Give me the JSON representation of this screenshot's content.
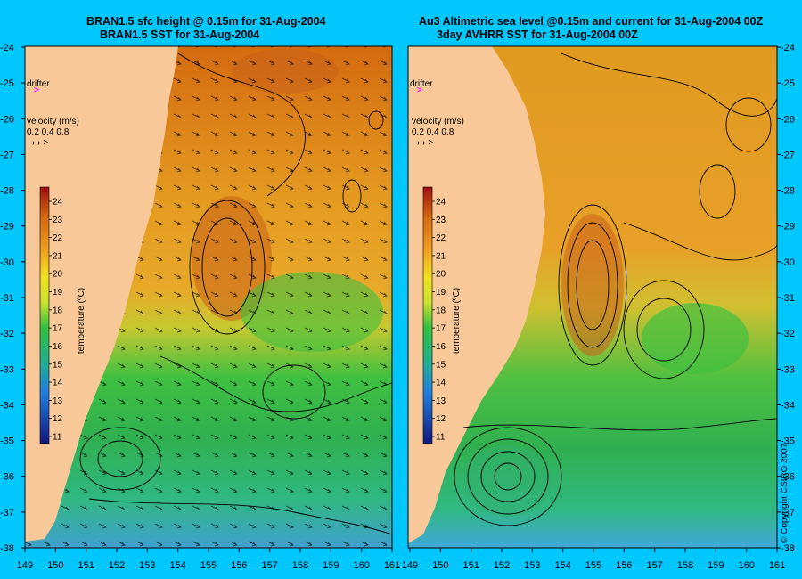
{
  "left_panel": {
    "title_line1": "BRAN1.5 sfc height @ 0.15m for 31-Aug-2004",
    "title_line2": "BRAN1.5 SST for 31-Aug-2004"
  },
  "right_panel": {
    "title_line1": "Au3 Altimetric sea level  @0.15m and current for 31-Aug-2004 00Z",
    "title_line2": "3day AVHRR SST for 31-Aug-2004 00Z"
  },
  "legend": {
    "drifter_label": "drifter",
    "velocity_label": "velocity (m/s)",
    "velocity_values": "0.2 0.4 0.8",
    "colorbar_title": "temperature (ºC)",
    "colorbar_ticks": [
      "24",
      "23",
      "22",
      "21",
      "20",
      "19",
      "18",
      "17",
      "16",
      "15",
      "14",
      "13",
      "12",
      "11"
    ]
  },
  "axes": {
    "lat_labels": [
      "-24",
      "-25",
      "-26",
      "-27",
      "-28",
      "-29",
      "-30",
      "-31",
      "-32",
      "-33",
      "-34",
      "-35",
      "-36",
      "-37",
      "-38"
    ],
    "lon_labels_left": [
      "149",
      "150",
      "151",
      "152",
      "153",
      "154",
      "155",
      "156",
      "157",
      "158",
      "159",
      "160",
      "161"
    ],
    "lon_labels_right": [
      "149",
      "150",
      "151",
      "152",
      "153",
      "154",
      "155",
      "156",
      "157",
      "158",
      "159",
      "160",
      "161"
    ]
  },
  "copyright": "© Copyright CSIRO 2007",
  "colors": {
    "background": "#00c8ff",
    "land": "#f8c898",
    "drifter_marker": "#ff00ff"
  }
}
